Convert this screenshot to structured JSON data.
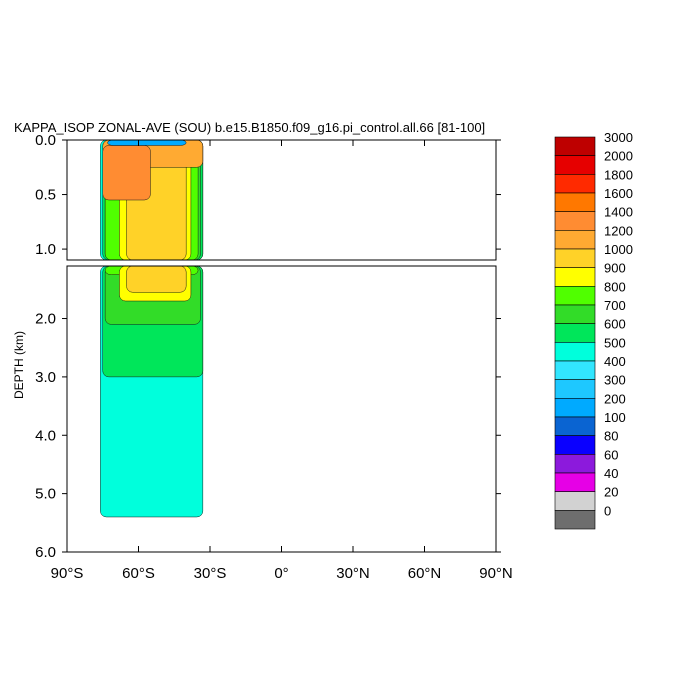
{
  "chart_data": {
    "type": "heatmap",
    "title": "KAPPA_ISOP ZONAL-AVE (SOU) b.e15.B1850.f09_g16.pi_control.all.66 [81-100]",
    "ylabel": "DEPTH (km)",
    "xlim": [
      -90,
      90
    ],
    "x_ticks": [
      -90,
      -60,
      -30,
      0,
      30,
      60,
      90
    ],
    "x_tick_labels": [
      "90°S",
      "60°S",
      "30°S",
      "0°",
      "30°N",
      "60°N",
      "90°N"
    ],
    "upper_panel": {
      "ylim": [
        0.0,
        1.1
      ],
      "y_ticks": [
        0.0,
        0.5,
        1.0
      ],
      "y_tick_labels": [
        "0.0",
        "0.5",
        "1.0"
      ]
    },
    "lower_panel": {
      "ylim": [
        1.1,
        6.0
      ],
      "y_ticks": [
        2.0,
        3.0,
        4.0,
        5.0,
        6.0
      ],
      "y_tick_labels": [
        "2.0",
        "3.0",
        "4.0",
        "5.0",
        "6.0"
      ]
    },
    "colorbar": {
      "levels": [
        "0",
        "20",
        "40",
        "60",
        "80",
        "100",
        "200",
        "300",
        "400",
        "500",
        "600",
        "700",
        "800",
        "900",
        "1000",
        "1200",
        "1400",
        "1600",
        "1800",
        "2000",
        "3000"
      ],
      "colors": [
        "#6e6e6e",
        "#d2d2d2",
        "#e600e6",
        "#8c1adc",
        "#0a00ff",
        "#0a64d2",
        "#00aaff",
        "#1ec8ff",
        "#32e6ff",
        "#00ffdc",
        "#00e65a",
        "#32dc28",
        "#50ff00",
        "#ffff00",
        "#ffd228",
        "#ffaa32",
        "#ff8c32",
        "#ff7800",
        "#ff2a00",
        "#e60000",
        "#be0000"
      ]
    },
    "regions": [
      {
        "lat": [
          -76,
          -33
        ],
        "depth": [
          0.0,
          5.4
        ],
        "value": 450
      },
      {
        "lat": [
          -75,
          -33
        ],
        "depth": [
          0.0,
          3.0
        ],
        "value": 550
      },
      {
        "lat": [
          -74,
          -34
        ],
        "depth": [
          0.0,
          2.1
        ],
        "value": 650
      },
      {
        "lat": [
          -74,
          -35
        ],
        "depth": [
          0.0,
          1.25
        ],
        "value": 750
      },
      {
        "lat": [
          -68,
          -38
        ],
        "depth": [
          0.1,
          1.7
        ],
        "value": 800
      },
      {
        "lat": [
          -65,
          -40
        ],
        "depth": [
          0.15,
          1.55
        ],
        "value": 950
      },
      {
        "lat": [
          -75,
          -33
        ],
        "depth": [
          0.0,
          0.25
        ],
        "value": 1100
      },
      {
        "lat": [
          -75,
          -55
        ],
        "depth": [
          0.05,
          0.55
        ],
        "value": 1300
      },
      {
        "lat": [
          -73,
          -40
        ],
        "depth": [
          0.0,
          0.05
        ],
        "value": 100
      }
    ]
  }
}
